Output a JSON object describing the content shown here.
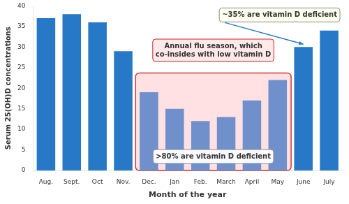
{
  "chart_data": {
    "type": "bar",
    "categories": [
      "Aug.",
      "Sept.",
      "Oct",
      "Nov.",
      "Dec.",
      "Jan",
      "Feb.",
      "March",
      "April",
      "May",
      "June",
      "July"
    ],
    "values": [
      37,
      38,
      36,
      29,
      19,
      15,
      12,
      13,
      17,
      22,
      30,
      34
    ],
    "colors": [
      "#2878C8",
      "#2878C8",
      "#2878C8",
      "#2878C8",
      "#7090CC",
      "#7090CC",
      "#7090CC",
      "#7090CC",
      "#7090CC",
      "#7090CC",
      "#2878C8",
      "#2878C8"
    ],
    "xlabel": "Month of the year",
    "ylabel": "Serum 25(OH)D concentrations",
    "ylim": [
      0,
      40
    ],
    "yticks": [
      0,
      5,
      10,
      15,
      20,
      25,
      30,
      35,
      40
    ],
    "grid": false,
    "annotations": [
      ">80% are vitamin D deficient",
      "Annual flu season, which\nco-insides with low vitamin D",
      "~35% are vitamin D deficient"
    ]
  }
}
